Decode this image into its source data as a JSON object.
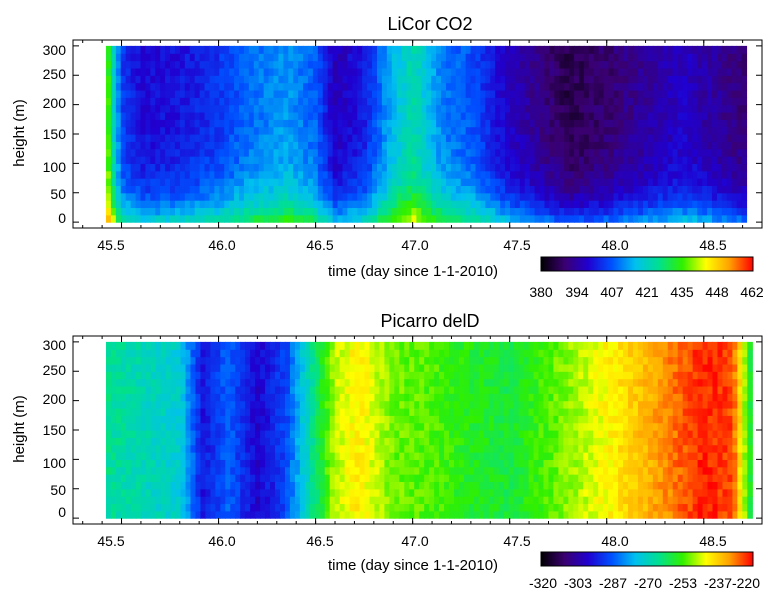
{
  "chart_data": [
    {
      "type": "heatmap",
      "title": "LiCor CO2",
      "xlabel": "time (day since 1-1-2010)",
      "ylabel": "height (m)",
      "xlim": [
        45.25,
        48.8
      ],
      "ylim": [
        -10,
        310
      ],
      "x_ticks": [
        "45.5",
        "46.0",
        "46.5",
        "47.0",
        "47.5",
        "48.0",
        "48.5"
      ],
      "y_ticks": [
        "0",
        "50",
        "100",
        "150",
        "200",
        "250",
        "300"
      ],
      "data_xrange": [
        45.42,
        48.72
      ],
      "data_yrange": [
        0,
        300
      ],
      "colorbar": {
        "min": 380,
        "max": 462,
        "tick_labels": [
          "380",
          "394",
          "407",
          "421",
          "435",
          "448",
          "462"
        ],
        "colormap": [
          "#000000",
          "#3a0070",
          "#2000d0",
          "#0050ff",
          "#00c0f0",
          "#00e090",
          "#30f000",
          "#ffff00",
          "#ffa000",
          "#ff0000"
        ]
      },
      "time_profile": [
        {
          "t": 45.42,
          "v": 440
        },
        {
          "t": 45.45,
          "v": 424
        },
        {
          "t": 45.5,
          "v": 405
        },
        {
          "t": 45.6,
          "v": 399
        },
        {
          "t": 45.8,
          "v": 400
        },
        {
          "t": 46.0,
          "v": 404
        },
        {
          "t": 46.15,
          "v": 409
        },
        {
          "t": 46.35,
          "v": 413
        },
        {
          "t": 46.5,
          "v": 408
        },
        {
          "t": 46.6,
          "v": 396
        },
        {
          "t": 46.75,
          "v": 401
        },
        {
          "t": 46.9,
          "v": 416
        },
        {
          "t": 47.0,
          "v": 423
        },
        {
          "t": 47.15,
          "v": 411
        },
        {
          "t": 47.3,
          "v": 407
        },
        {
          "t": 47.45,
          "v": 399
        },
        {
          "t": 47.6,
          "v": 393
        },
        {
          "t": 47.8,
          "v": 386
        },
        {
          "t": 48.0,
          "v": 389
        },
        {
          "t": 48.2,
          "v": 393
        },
        {
          "t": 48.4,
          "v": 397
        },
        {
          "t": 48.6,
          "v": 392
        },
        {
          "t": 48.72,
          "v": 389
        }
      ],
      "surface_enhancement": 22
    },
    {
      "type": "heatmap",
      "title": "Picarro delD",
      "xlabel": "time (day since 1-1-2010)",
      "ylabel": "height (m)",
      "xlim": [
        45.25,
        48.8
      ],
      "ylim": [
        -10,
        310
      ],
      "x_ticks": [
        "45.5",
        "46.0",
        "46.5",
        "47.0",
        "47.5",
        "48.0",
        "48.5"
      ],
      "y_ticks": [
        "0",
        "50",
        "100",
        "150",
        "200",
        "250",
        "300"
      ],
      "data_xrange": [
        45.42,
        48.75
      ],
      "data_yrange": [
        0,
        300
      ],
      "colorbar": {
        "min": -320,
        "max": -220,
        "tick_labels": [
          "-320",
          "-303",
          "-287",
          "-270",
          "-253",
          "-237",
          "-220"
        ],
        "colormap": [
          "#000000",
          "#3a0070",
          "#2000d0",
          "#0050ff",
          "#00c0f0",
          "#00e090",
          "#30f000",
          "#ffff00",
          "#ffa000",
          "#ff0000"
        ]
      },
      "time_profile": [
        {
          "t": 45.42,
          "v": -265
        },
        {
          "t": 45.6,
          "v": -268
        },
        {
          "t": 45.8,
          "v": -272
        },
        {
          "t": 45.92,
          "v": -295
        },
        {
          "t": 46.05,
          "v": -285
        },
        {
          "t": 46.2,
          "v": -298
        },
        {
          "t": 46.35,
          "v": -288
        },
        {
          "t": 46.5,
          "v": -262
        },
        {
          "t": 46.6,
          "v": -246
        },
        {
          "t": 46.72,
          "v": -240
        },
        {
          "t": 46.9,
          "v": -250
        },
        {
          "t": 47.1,
          "v": -252
        },
        {
          "t": 47.3,
          "v": -256
        },
        {
          "t": 47.5,
          "v": -258
        },
        {
          "t": 47.7,
          "v": -252
        },
        {
          "t": 47.9,
          "v": -245
        },
        {
          "t": 48.1,
          "v": -238
        },
        {
          "t": 48.3,
          "v": -230
        },
        {
          "t": 48.5,
          "v": -222
        },
        {
          "t": 48.65,
          "v": -225
        },
        {
          "t": 48.75,
          "v": -262
        }
      ],
      "surface_enhancement": 0
    }
  ]
}
